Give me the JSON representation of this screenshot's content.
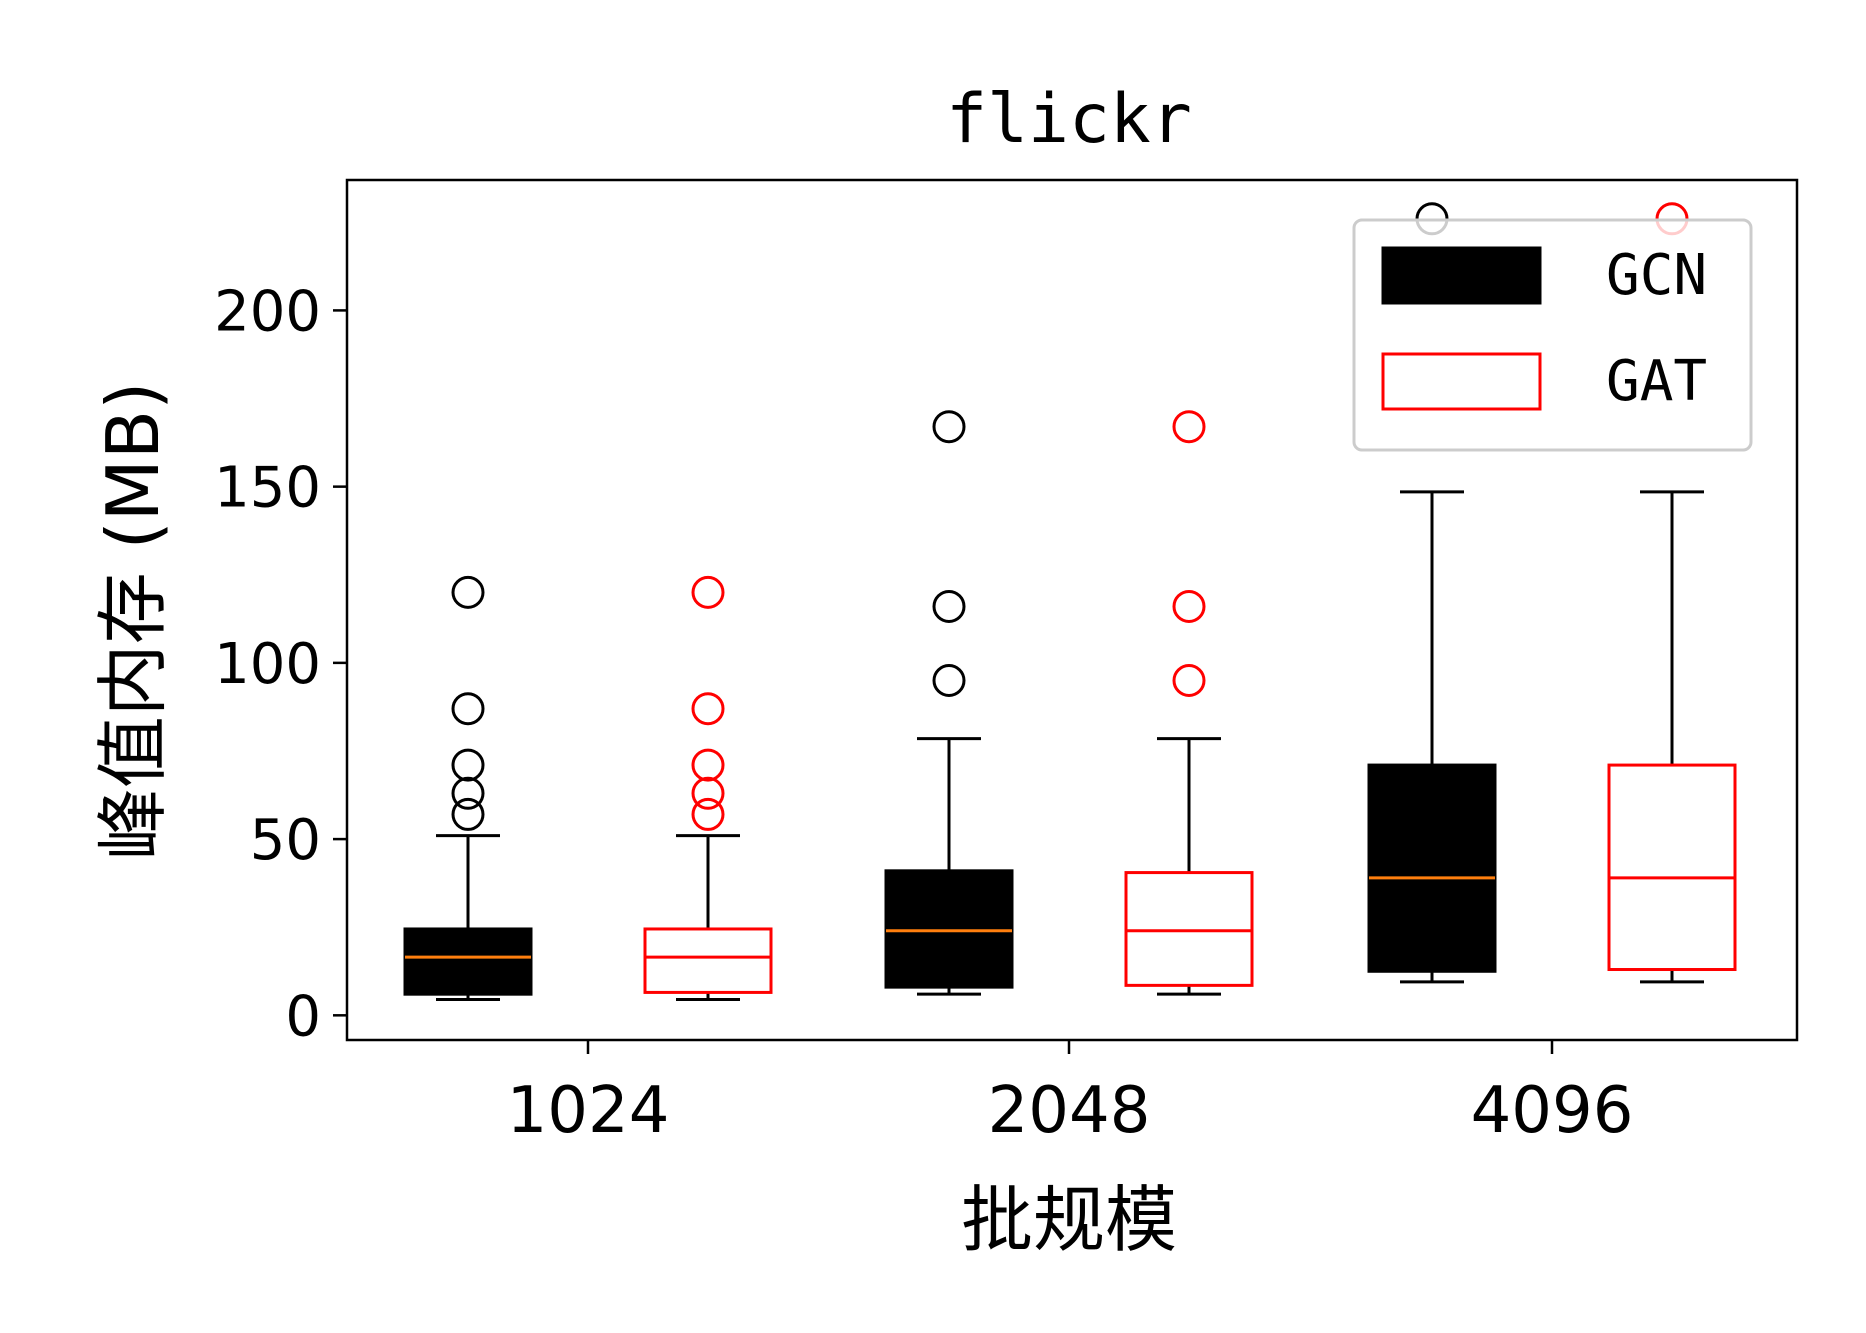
{
  "chart_data": {
    "type": "boxplot",
    "title": "flickr",
    "xlabel": "批规模",
    "ylabel": "峰值内存 (MB)",
    "categories": [
      "1024",
      "2048",
      "4096"
    ],
    "ylim": [
      -7,
      237
    ],
    "yticks": [
      0,
      50,
      100,
      150,
      200
    ],
    "legend_position": "top-right",
    "series": [
      {
        "name": "GCN",
        "fill": "#000000",
        "edge": "#000000",
        "median_color": "#ff7f0e",
        "flier_color": "#000000",
        "boxes": [
          {
            "whisker_low": 4.5,
            "q1": 6,
            "median": 16.5,
            "q3": 24.5,
            "whisker_high": 51,
            "fliers": [
              57,
              63,
              71,
              87,
              120
            ]
          },
          {
            "whisker_low": 6,
            "q1": 8,
            "median": 24,
            "q3": 41,
            "whisker_high": 78.5,
            "fliers": [
              95,
              116,
              167
            ]
          },
          {
            "whisker_low": 9.5,
            "q1": 12.5,
            "median": 39,
            "q3": 71,
            "whisker_high": 148.5,
            "fliers": [
              226
            ]
          }
        ]
      },
      {
        "name": "GAT",
        "fill": "none",
        "edge": "#ff0000",
        "median_color": "#ff0000",
        "flier_color": "#ff0000",
        "boxes": [
          {
            "whisker_low": 4.5,
            "q1": 6.5,
            "median": 16.5,
            "q3": 24.5,
            "whisker_high": 51,
            "fliers": [
              57,
              63,
              71,
              87,
              120
            ]
          },
          {
            "whisker_low": 6,
            "q1": 8.5,
            "median": 24,
            "q3": 40.5,
            "whisker_high": 78.5,
            "fliers": [
              95,
              116,
              167
            ]
          },
          {
            "whisker_low": 9.5,
            "q1": 13,
            "median": 39,
            "q3": 71,
            "whisker_high": 148.5,
            "fliers": [
              226
            ]
          }
        ]
      }
    ]
  }
}
